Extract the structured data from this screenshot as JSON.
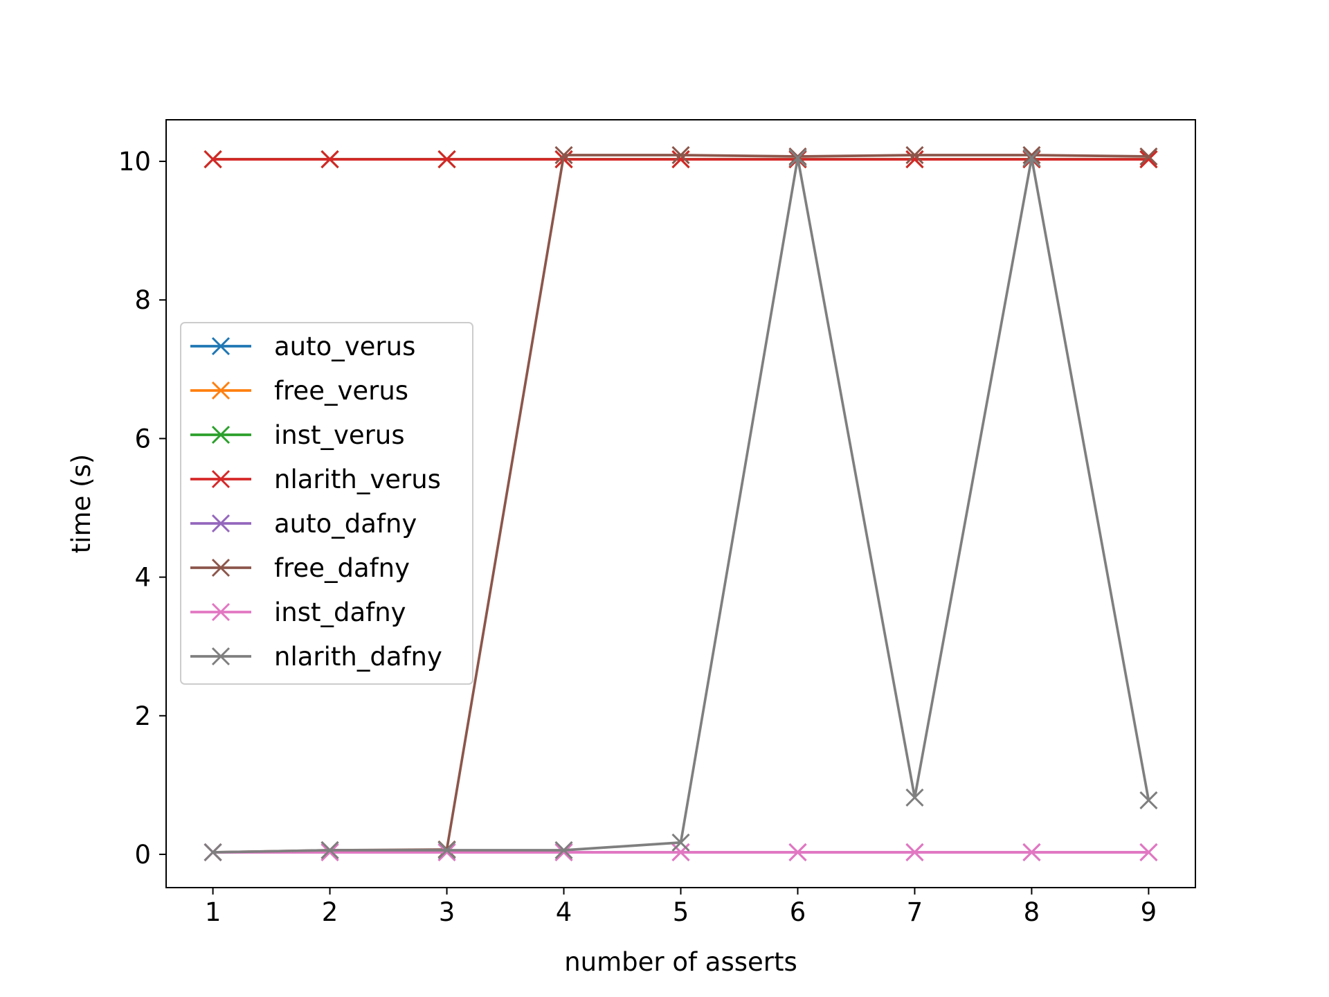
{
  "chart_data": {
    "type": "line",
    "title": "",
    "xlabel": "number of asserts",
    "ylabel": "time (s)",
    "x": [
      1,
      2,
      3,
      4,
      5,
      6,
      7,
      8,
      9
    ],
    "xlim": [
      0.6,
      9.4
    ],
    "ylim": [
      -0.48,
      10.6
    ],
    "xticks": [
      1,
      2,
      3,
      4,
      5,
      6,
      7,
      8,
      9
    ],
    "yticks": [
      0,
      2,
      4,
      6,
      8,
      10
    ],
    "marker": "x",
    "grid": false,
    "legend": "center-left",
    "series": [
      {
        "name": "auto_verus",
        "color": "#1f77b4",
        "values": [
          10.03,
          10.03,
          10.03,
          10.03,
          10.03,
          10.03,
          10.03,
          10.03,
          10.03
        ]
      },
      {
        "name": "free_verus",
        "color": "#ff7f0e",
        "values": [
          10.03,
          10.03,
          10.03,
          10.03,
          10.03,
          10.03,
          10.03,
          10.03,
          10.03
        ]
      },
      {
        "name": "inst_verus",
        "color": "#2ca02c",
        "values": [
          10.03,
          10.03,
          10.03,
          10.03,
          10.03,
          10.03,
          10.03,
          10.03,
          10.03
        ]
      },
      {
        "name": "nlarith_verus",
        "color": "#d62728",
        "values": [
          10.03,
          10.03,
          10.03,
          10.03,
          10.03,
          10.03,
          10.03,
          10.03,
          10.03
        ]
      },
      {
        "name": "auto_dafny",
        "color": "#9467bd",
        "values": [
          0.03,
          0.03,
          0.03,
          0.03,
          0.03,
          0.03,
          0.03,
          0.03,
          0.03
        ]
      },
      {
        "name": "free_dafny",
        "color": "#8c564b",
        "values": [
          0.03,
          0.06,
          0.07,
          10.09,
          10.09,
          10.07,
          10.09,
          10.09,
          10.07
        ]
      },
      {
        "name": "inst_dafny",
        "color": "#e377c2",
        "values": [
          0.03,
          0.03,
          0.03,
          0.03,
          0.03,
          0.03,
          0.03,
          0.03,
          0.03
        ]
      },
      {
        "name": "nlarith_dafny",
        "color": "#7f7f7f",
        "values": [
          0.03,
          0.06,
          0.06,
          0.06,
          0.17,
          10.05,
          0.82,
          10.05,
          0.78
        ]
      }
    ]
  }
}
